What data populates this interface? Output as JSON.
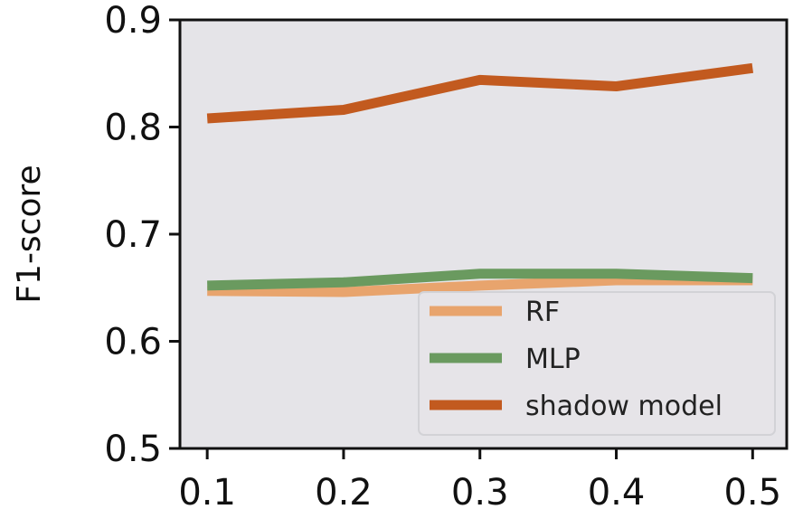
{
  "chart_data": {
    "type": "line",
    "title": "",
    "xlabel": "",
    "ylabel": "F1-score",
    "x": [
      0.1,
      0.2,
      0.3,
      0.4,
      0.5
    ],
    "x_tick_labels": [
      "0.1",
      "0.2",
      "0.3",
      "0.4",
      "0.5"
    ],
    "y_tick_labels": [
      "0.5",
      "0.6",
      "0.7",
      "0.8",
      "0.9"
    ],
    "y_ticks": [
      0.5,
      0.6,
      0.7,
      0.8,
      0.9
    ],
    "xlim": [
      0.08,
      0.525
    ],
    "ylim": [
      0.5,
      0.9
    ],
    "grid": false,
    "legend_position": "lower-right",
    "background_color": "#e5e4e8",
    "series": [
      {
        "name": "RF",
        "color": "#e8a46d",
        "values": [
          0.647,
          0.646,
          0.652,
          0.657,
          0.657
        ]
      },
      {
        "name": "MLP",
        "color": "#6a9a5f",
        "values": [
          0.652,
          0.655,
          0.663,
          0.663,
          0.659
        ]
      },
      {
        "name": "shadow model",
        "color": "#c25a1f",
        "values": [
          0.808,
          0.816,
          0.844,
          0.838,
          0.855
        ]
      }
    ]
  }
}
